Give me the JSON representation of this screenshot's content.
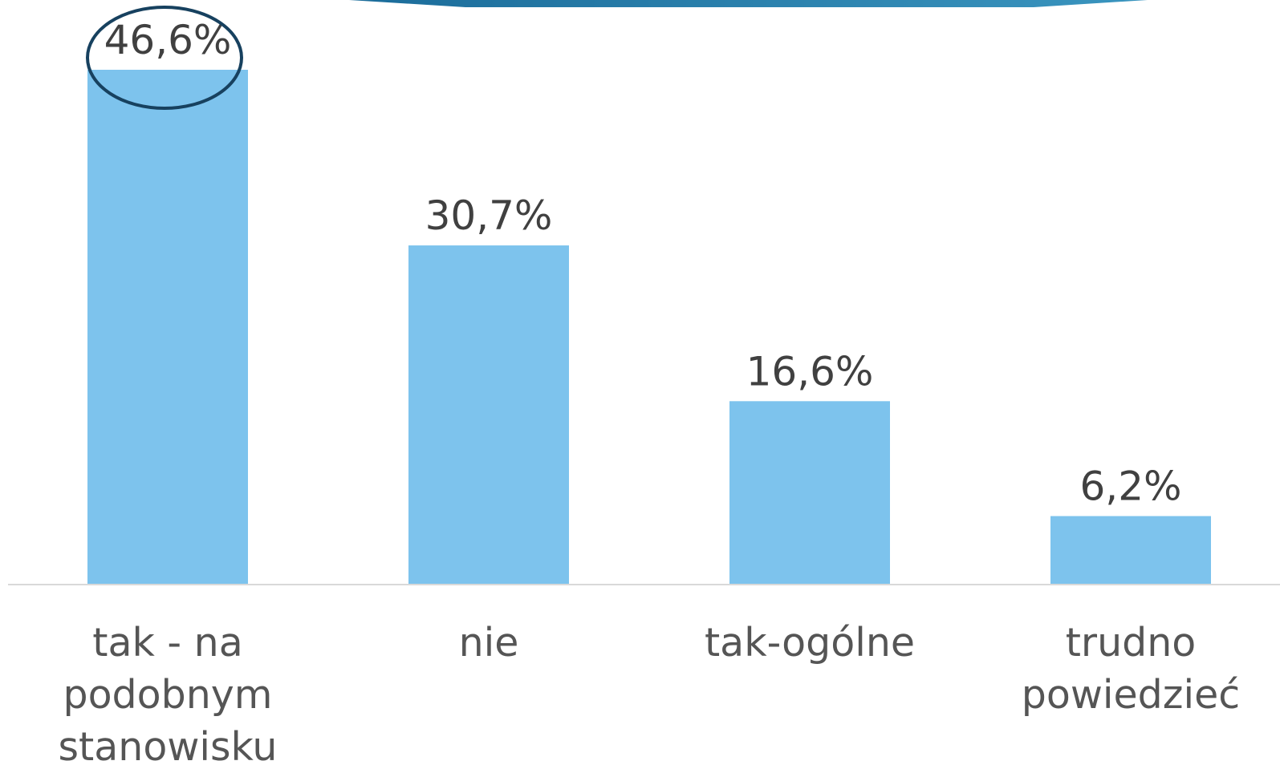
{
  "chart_data": {
    "type": "bar",
    "categories": [
      [
        "tak - na",
        "podobnym",
        "stanowisku"
      ],
      [
        "nie"
      ],
      [
        "tak-ogólne"
      ],
      [
        "trudno",
        "powiedzieć"
      ]
    ],
    "values": [
      46.6,
      30.7,
      16.6,
      6.2
    ],
    "value_labels": [
      "46,6%",
      "30,7%",
      "16,6%",
      "6,2%"
    ],
    "highlight_index": 0,
    "ylim": [
      0,
      50
    ],
    "grid": false,
    "colors": {
      "bar": "#7DC3ED",
      "baseline": "#D9D9D9",
      "value_text": "#404040",
      "category_text": "#555555",
      "highlight_ring": "#17415F",
      "banner_start": "#1B6C9A",
      "banner_end": "#3A95BF"
    }
  }
}
